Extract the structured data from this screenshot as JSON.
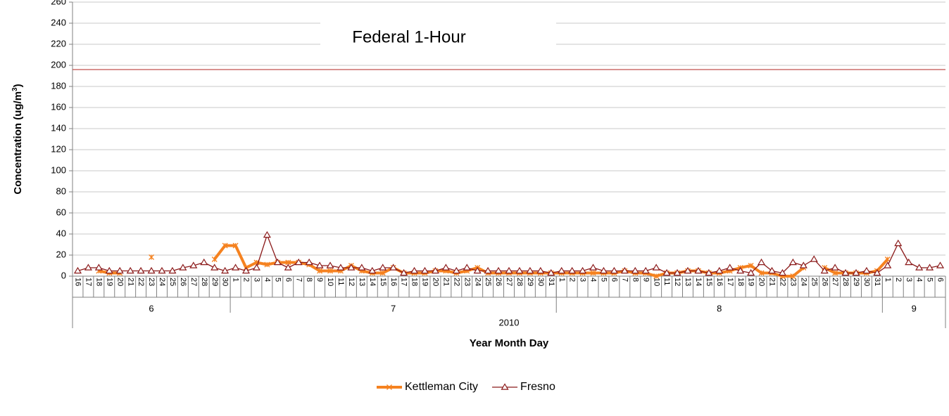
{
  "chart_data": {
    "type": "line",
    "annotation": "Federal 1-Hour",
    "reference_line": {
      "value": 196,
      "color": "#c0504d"
    },
    "ylabel": [
      "Concentration (ug/m",
      "3",
      ")"
    ],
    "xlabel": "Year Month Day",
    "year": "2010",
    "months": [
      {
        "label": "6",
        "days": [
          "16",
          "17",
          "18",
          "19",
          "20",
          "21",
          "22",
          "23",
          "24",
          "25",
          "26",
          "27",
          "28",
          "29",
          "30"
        ]
      },
      {
        "label": "7",
        "days": [
          "1",
          "2",
          "3",
          "4",
          "5",
          "6",
          "7",
          "8",
          "9",
          "10",
          "11",
          "12",
          "13",
          "14",
          "15",
          "16",
          "17",
          "18",
          "19",
          "20",
          "21",
          "22",
          "23",
          "24",
          "25",
          "26",
          "27",
          "28",
          "29",
          "30",
          "31"
        ]
      },
      {
        "label": "8",
        "days": [
          "1",
          "2",
          "3",
          "4",
          "5",
          "6",
          "7",
          "8",
          "9",
          "10",
          "11",
          "12",
          "13",
          "14",
          "15",
          "16",
          "17",
          "18",
          "19",
          "20",
          "21",
          "22",
          "23",
          "24",
          "25",
          "26",
          "27",
          "28",
          "29",
          "30",
          "31"
        ]
      },
      {
        "label": "9",
        "days": [
          "1",
          "2",
          "3",
          "4",
          "5",
          "6"
        ]
      }
    ],
    "ylim": [
      0,
      260
    ],
    "yticks": [
      0,
      20,
      40,
      60,
      80,
      100,
      120,
      140,
      160,
      180,
      200,
      220,
      240,
      260
    ],
    "grid": true,
    "legend": "bottom",
    "series": [
      {
        "name": "Kettleman City",
        "color": "#f58220",
        "marker": "x",
        "values": [
          null,
          null,
          5,
          3,
          3,
          null,
          null,
          18,
          null,
          null,
          null,
          null,
          null,
          16,
          29,
          29,
          8,
          13,
          11,
          13,
          13,
          13,
          11,
          5,
          5,
          5,
          10,
          5,
          3,
          3,
          8,
          3,
          3,
          3,
          5,
          5,
          3,
          5,
          8,
          3,
          3,
          3,
          3,
          3,
          3,
          3,
          3,
          3,
          3,
          3,
          3,
          3,
          5,
          3,
          3,
          0,
          3,
          3,
          5,
          5,
          3,
          3,
          5,
          8,
          10,
          3,
          3,
          0,
          0,
          8,
          null,
          8,
          3,
          3,
          3,
          3,
          5,
          16,
          null,
          null,
          null,
          null,
          null
        ]
      },
      {
        "name": "Fresno",
        "color": "#8b1a1a",
        "marker": "triangle",
        "values": [
          5,
          8,
          8,
          5,
          5,
          5,
          5,
          5,
          5,
          5,
          8,
          10,
          13,
          8,
          5,
          8,
          5,
          8,
          39,
          13,
          8,
          13,
          13,
          10,
          10,
          8,
          8,
          8,
          5,
          8,
          8,
          3,
          5,
          5,
          5,
          8,
          5,
          8,
          5,
          5,
          5,
          5,
          5,
          5,
          5,
          3,
          5,
          5,
          5,
          8,
          5,
          5,
          5,
          5,
          5,
          8,
          3,
          3,
          5,
          5,
          3,
          5,
          8,
          5,
          3,
          13,
          5,
          3,
          13,
          10,
          16,
          5,
          8,
          3,
          3,
          5,
          3,
          10,
          31,
          13,
          8,
          8,
          10
        ]
      }
    ]
  }
}
